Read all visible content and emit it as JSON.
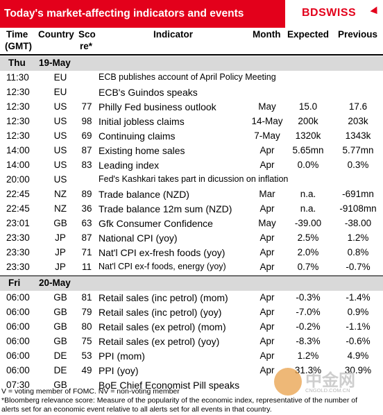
{
  "header": {
    "title": "Today's market-affecting indicators and events",
    "logo_bd": "BD",
    "logo_swiss": "SWISS"
  },
  "columns": {
    "time_1": "Time",
    "time_2": "(GMT)",
    "country": "Country",
    "score_1": "Sco",
    "score_2": "re*",
    "indicator": "Indicator",
    "month": "Month",
    "expected": "Expected",
    "previous": "Previous"
  },
  "sections": [
    {
      "day": "Thu",
      "date": "19-May",
      "rows": [
        {
          "time": "11:30",
          "country": "EU",
          "score": "",
          "indicator": "ECB publishes account of April Policy Meeting",
          "month": "",
          "expected": "",
          "previous": ""
        },
        {
          "time": "12:30",
          "country": "EU",
          "score": "",
          "indicator": "ECB's Guindos speaks",
          "month": "",
          "expected": "",
          "previous": ""
        },
        {
          "time": "12:30",
          "country": "US",
          "score": "77",
          "indicator": "Philly Fed business outlook",
          "month": "May",
          "expected": "15.0",
          "previous": "17.6"
        },
        {
          "time": "12:30",
          "country": "US",
          "score": "98",
          "indicator": "Initial jobless claims",
          "month": "14-May",
          "expected": "200k",
          "previous": "203k"
        },
        {
          "time": "12:30",
          "country": "US",
          "score": "69",
          "indicator": "Continuing claims",
          "month": "7-May",
          "expected": "1320k",
          "previous": "1343k"
        },
        {
          "time": "14:00",
          "country": "US",
          "score": "87",
          "indicator": "Existing home sales",
          "month": "Apr",
          "expected": "5.65mn",
          "previous": "5.77mn"
        },
        {
          "time": "14:00",
          "country": "US",
          "score": "83",
          "indicator": "Leading index",
          "month": "Apr",
          "expected": "0.0%",
          "previous": "0.3%"
        },
        {
          "time": "20:00",
          "country": "US",
          "score": "",
          "indicator": "Fed's Kashkari takes part in dicussion on inflation",
          "month": "",
          "expected": "",
          "previous": ""
        },
        {
          "time": "22:45",
          "country": "NZ",
          "score": "89",
          "indicator": "Trade balance (NZD)",
          "month": "Mar",
          "expected": "n.a.",
          "previous": "-691mn"
        },
        {
          "time": "22:45",
          "country": "NZ",
          "score": "36",
          "indicator": "Trade balance 12m sum (NZD)",
          "month": "Apr",
          "expected": "n.a.",
          "previous": "-9108mn"
        },
        {
          "time": "23:01",
          "country": "GB",
          "score": "63",
          "indicator": "Gfk Consumer Confidence",
          "month": "May",
          "expected": "-39.00",
          "previous": "-38.00"
        },
        {
          "time": "23:30",
          "country": "JP",
          "score": "87",
          "indicator": "National CPI (yoy)",
          "month": "Apr",
          "expected": "2.5%",
          "previous": "1.2%"
        },
        {
          "time": "23:30",
          "country": "JP",
          "score": "71",
          "indicator": "Nat'l CPI ex-fresh foods (yoy)",
          "month": "Apr",
          "expected": "2.0%",
          "previous": "0.8%"
        },
        {
          "time": "23:30",
          "country": "JP",
          "score": "11",
          "indicator": "Nat'l CPI ex-f foods, energy (yoy)",
          "month": "Apr",
          "expected": "0.7%",
          "previous": "-0.7%"
        }
      ]
    },
    {
      "day": "Fri",
      "date": "20-May",
      "rows": [
        {
          "time": "06:00",
          "country": "GB",
          "score": "81",
          "indicator": "Retail sales (inc petrol) (mom)",
          "month": "Apr",
          "expected": "-0.3%",
          "previous": "-1.4%"
        },
        {
          "time": "06:00",
          "country": "GB",
          "score": "79",
          "indicator": "Retail sales (inc petrol) (yoy)",
          "month": "Apr",
          "expected": "-7.0%",
          "previous": "0.9%"
        },
        {
          "time": "06:00",
          "country": "GB",
          "score": "80",
          "indicator": "Retail sales (ex petrol) (mom)",
          "month": "Apr",
          "expected": "-0.2%",
          "previous": "-1.1%"
        },
        {
          "time": "06:00",
          "country": "GB",
          "score": "75",
          "indicator": "Retail sales (ex petrol) (yoy)",
          "month": "Apr",
          "expected": "-8.3%",
          "previous": "-0.6%"
        },
        {
          "time": "06:00",
          "country": "DE",
          "score": "53",
          "indicator": "PPI (mom)",
          "month": "Apr",
          "expected": "1.2%",
          "previous": "4.9%"
        },
        {
          "time": "06:00",
          "country": "DE",
          "score": "49",
          "indicator": "PPI (yoy)",
          "month": "Apr",
          "expected": "31.3%",
          "previous": "30.9%"
        },
        {
          "time": "07:30",
          "country": "GB",
          "score": "",
          "indicator": "BoE Chief Economist Pill speaks",
          "month": "",
          "expected": "",
          "previous": ""
        }
      ]
    }
  ],
  "footer": {
    "line1": "V = voting member of FOMC. NV = non-voting member",
    "line2": "*Bloomberg relevance score:  Measure of the popularity of the economic index, representative of the number of",
    "line3": "alerts set for an economic event relative to all alerts set for all events in that country."
  },
  "watermark": {
    "text": "中金网",
    "sub": "CNGOLD.COM.CN"
  },
  "colors": {
    "brand_red": "#e3001b",
    "section_gray": "#d9d9d9"
  }
}
